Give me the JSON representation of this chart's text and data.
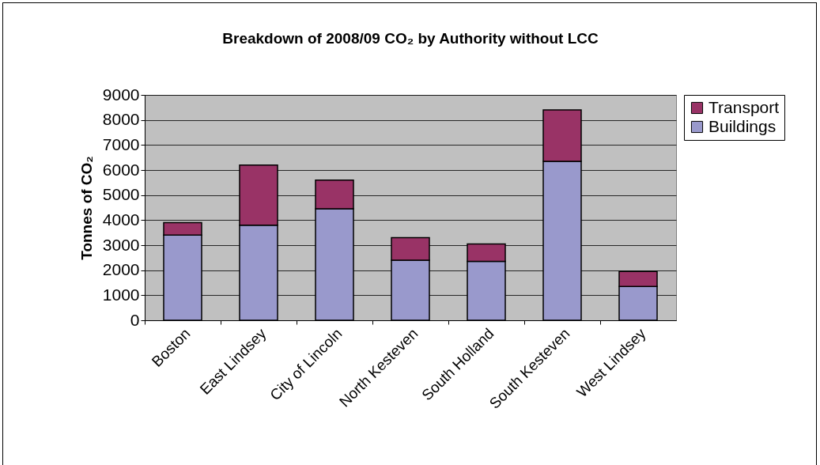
{
  "chart_data": {
    "type": "bar",
    "title": "Breakdown of 2008/09 CO₂ by Authority without LCC",
    "ylabel": "Tonnes of CO₂",
    "categories": [
      "Boston",
      "East Lindsey",
      "City of Lincoln",
      "North Kesteven",
      "South Holland",
      "South Kesteven",
      "West Lindsey"
    ],
    "series": [
      {
        "name": "Buildings",
        "color": "#9999cc",
        "values": [
          3400,
          3800,
          4450,
          2400,
          2350,
          6350,
          1350
        ]
      },
      {
        "name": "Transport",
        "color": "#993366",
        "values": [
          500,
          2400,
          1150,
          900,
          700,
          2050,
          600
        ]
      }
    ],
    "stacked": true,
    "ylim": [
      0,
      9000
    ],
    "yticks": [
      0,
      1000,
      2000,
      3000,
      4000,
      5000,
      6000,
      7000,
      8000,
      9000
    ],
    "grid": "y",
    "legend": "right"
  }
}
